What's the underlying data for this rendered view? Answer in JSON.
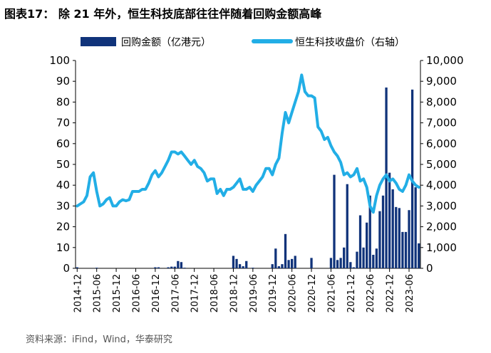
{
  "header": {
    "title": "图表17： 除 21 年外，恒生科技底部往往伴随着回购金额高峰"
  },
  "footer": {
    "source": "资料来源：iFind，Wind，华泰研究"
  },
  "colors": {
    "bar": "#10337a",
    "line": "#22aee6",
    "axis": "#000000"
  },
  "chart_data": {
    "type": "bar+line",
    "title": "除 21 年外，恒生科技底部往往伴随着回购金额高峰",
    "legend": {
      "position": "top",
      "bar_label": "回购金额（亿港元）",
      "line_label": "恒生科技收盘价（右轴）"
    },
    "y_left": {
      "min": 0,
      "max": 100,
      "step": 10,
      "ticks": [
        "0",
        "10",
        "20",
        "30",
        "40",
        "50",
        "60",
        "70",
        "80",
        "90",
        "100"
      ]
    },
    "y_right": {
      "min": 0,
      "max": 10000,
      "step": 1000,
      "ticks": [
        "0",
        "1,000",
        "2,000",
        "3,000",
        "4,000",
        "5,000",
        "6,000",
        "7,000",
        "8,000",
        "9,000",
        "10,000"
      ]
    },
    "x_start": "2014-12",
    "x_end": "2023-09",
    "x_tick_labels": [
      "2014-12",
      "2015-06",
      "2015-12",
      "2016-06",
      "2016-12",
      "2017-06",
      "2017-12",
      "2018-06",
      "2018-12",
      "2019-06",
      "2019-12",
      "2020-06",
      "2020-12",
      "2021-06",
      "2021-12",
      "2022-06",
      "2022-12",
      "2023-06"
    ],
    "bars_month_index": [
      0,
      6,
      24,
      25,
      28,
      29,
      30,
      31,
      32,
      33,
      48,
      49,
      50,
      51,
      52,
      54,
      60,
      61,
      62,
      63,
      64,
      65,
      66,
      67,
      72,
      78,
      79,
      80,
      81,
      82,
      83,
      84,
      85,
      86,
      87,
      88,
      89,
      90,
      91,
      92,
      93,
      94,
      95,
      96,
      97,
      98,
      99,
      100,
      101,
      102,
      103,
      104,
      105
    ],
    "bars_values": [
      0.5,
      0.3,
      0.5,
      0.5,
      0.5,
      0.8,
      0.8,
      3.5,
      3,
      0.3,
      6,
      4.5,
      2,
      1,
      3.5,
      0.3,
      2,
      9.5,
      1,
      2,
      16.5,
      4,
      4.5,
      6,
      5,
      5,
      45,
      4,
      5,
      10,
      40.5,
      3,
      0.5,
      8,
      25.5,
      10,
      22,
      35,
      6.5,
      9.5,
      27.5,
      35,
      87,
      46,
      38,
      29.5,
      29,
      17.5,
      17.5,
      28,
      86,
      39,
      12
    ],
    "line_series": {
      "name": "恒生科技收盘价（右轴）",
      "months": [
        0,
        1,
        2,
        3,
        4,
        5,
        6,
        7,
        8,
        9,
        10,
        11,
        12,
        13,
        14,
        15,
        16,
        17,
        18,
        19,
        20,
        21,
        22,
        23,
        24,
        25,
        26,
        27,
        28,
        29,
        30,
        31,
        32,
        33,
        34,
        35,
        36,
        37,
        38,
        39,
        40,
        41,
        42,
        43,
        44,
        45,
        46,
        47,
        48,
        49,
        50,
        51,
        52,
        53,
        54,
        55,
        56,
        57,
        58,
        59,
        60,
        61,
        62,
        63,
        64,
        65,
        66,
        67,
        68,
        69,
        70,
        71,
        72,
        73,
        74,
        75,
        76,
        77,
        78,
        79,
        80,
        81,
        82,
        83,
        84,
        85,
        86,
        87,
        88,
        89,
        90,
        91,
        92,
        93,
        94,
        95,
        96,
        97,
        98,
        99,
        100,
        101,
        102,
        103,
        104,
        105
      ],
      "values": [
        3000,
        3100,
        3200,
        3500,
        4400,
        4600,
        3700,
        3000,
        3100,
        3300,
        3400,
        3000,
        3000,
        3200,
        3300,
        3250,
        3300,
        3700,
        3700,
        3700,
        3800,
        3800,
        4100,
        4500,
        4700,
        4400,
        4600,
        4900,
        5200,
        5600,
        5600,
        5500,
        5600,
        5400,
        5200,
        5000,
        5200,
        4900,
        4800,
        4600,
        4200,
        4300,
        4300,
        3600,
        3800,
        3500,
        3800,
        3800,
        3900,
        4100,
        4300,
        3800,
        3800,
        3900,
        3700,
        4000,
        4200,
        4400,
        4800,
        4800,
        4500,
        5000,
        5300,
        6500,
        7500,
        7000,
        7500,
        8000,
        8500,
        9300,
        8500,
        8300,
        8300,
        8200,
        6800,
        6600,
        6200,
        6300,
        5900,
        5600,
        5400,
        5100,
        4500,
        4600,
        4400,
        4500,
        4800,
        4200,
        4300,
        3900,
        3000,
        2700,
        3500,
        4000,
        4300,
        4500,
        4200,
        4300,
        4100,
        3800,
        3700,
        4000,
        4500,
        4200,
        4000,
        3900
      ]
    }
  }
}
